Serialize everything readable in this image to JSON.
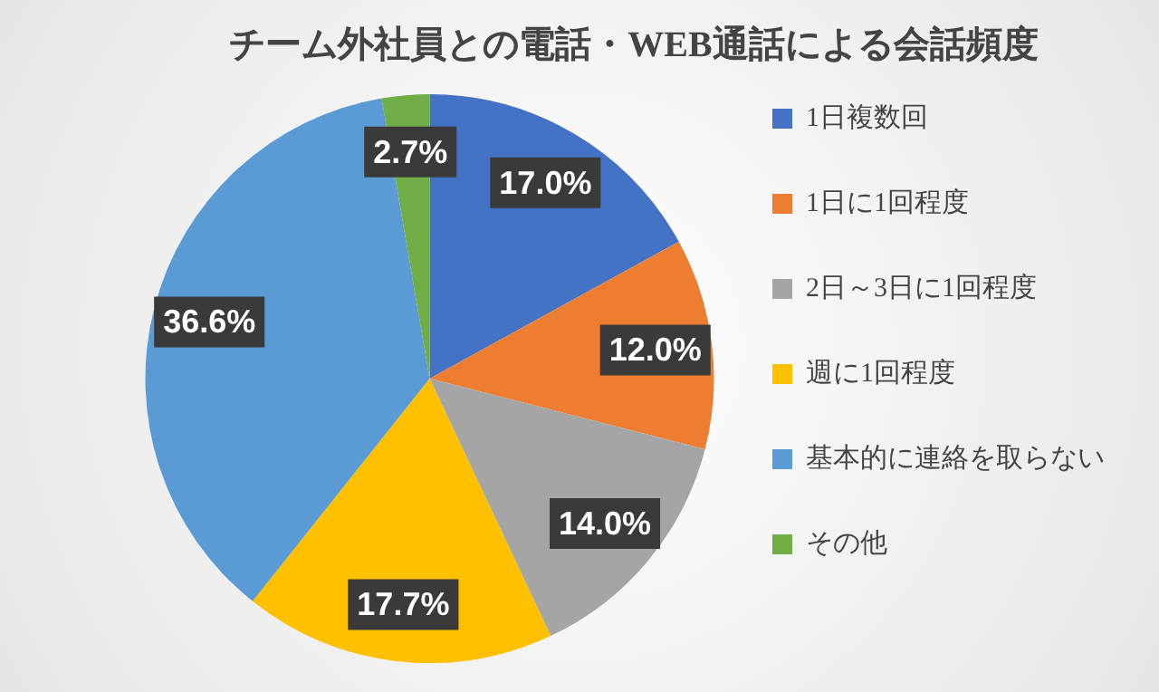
{
  "chart_data": {
    "type": "pie",
    "title": "チーム外社員との電話・WEB通話による会話頻度",
    "categories": [
      "1日複数回",
      "1日に1回程度",
      "2日～3日に1回程度",
      "週に1回程度",
      "基本的に連絡を取らない",
      "その他"
    ],
    "values": [
      17.0,
      12.0,
      14.0,
      17.7,
      36.6,
      2.7
    ],
    "colors": [
      "#4472c4",
      "#ed7d31",
      "#a5a5a5",
      "#ffc000",
      "#5b9bd5",
      "#70ad47"
    ],
    "value_labels": [
      "17.0%",
      "12.0%",
      "14.0%",
      "17.7%",
      "36.6%",
      "2.7%"
    ],
    "legend": "right"
  }
}
